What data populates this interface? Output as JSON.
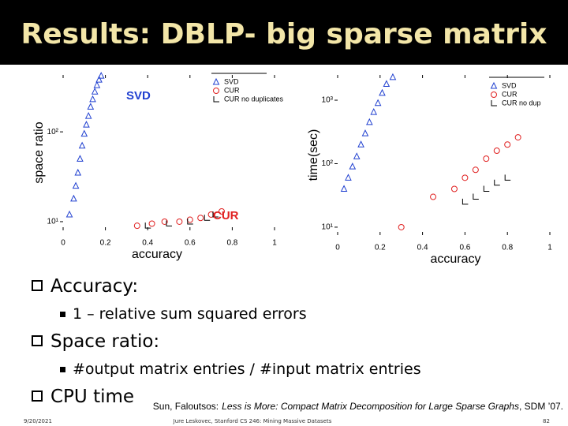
{
  "title": "Results: DBLP- big sparse matrix",
  "chart_data": [
    {
      "type": "scatter",
      "xlabel": "accuracy",
      "ylabel": "space ratio",
      "xlim": [
        0,
        1
      ],
      "xticks": [
        0,
        0.2,
        0.4,
        0.6,
        0.8,
        1
      ],
      "ylim": [
        8,
        430
      ],
      "ylog": true,
      "yticks": [
        {
          "value": 10,
          "label": "10¹"
        },
        {
          "value": 100,
          "label": "10²"
        }
      ],
      "annotations": [
        {
          "text": "SVD",
          "color": "#1f3fd0"
        },
        {
          "text": "CUR",
          "color": "#e02020"
        }
      ],
      "series": [
        {
          "name": "SVD",
          "color": "#2040d0",
          "marker": "triangle",
          "x": [
            0.03,
            0.05,
            0.06,
            0.07,
            0.08,
            0.09,
            0.1,
            0.11,
            0.12,
            0.13,
            0.14,
            0.15,
            0.16,
            0.17,
            0.18
          ],
          "values": [
            12,
            18,
            25,
            35,
            50,
            70,
            95,
            120,
            150,
            190,
            230,
            280,
            330,
            380,
            420
          ]
        },
        {
          "name": "CUR",
          "color": "#e02020",
          "marker": "circle",
          "x": [
            0.35,
            0.42,
            0.48,
            0.55,
            0.6,
            0.65,
            0.7,
            0.75
          ],
          "values": [
            9,
            9.5,
            10,
            10,
            10.5,
            11,
            12,
            13
          ]
        },
        {
          "name": "CUR no duplicates",
          "color": "#000000",
          "marker": "corner",
          "x": [
            0.4,
            0.5,
            0.6,
            0.68,
            0.72
          ],
          "values": [
            9,
            9.5,
            10,
            11,
            12
          ]
        }
      ]
    },
    {
      "type": "scatter",
      "xlabel": "accuracy",
      "ylabel": "time(sec)",
      "xlim": [
        0,
        1
      ],
      "xticks": [
        0,
        0.2,
        0.4,
        0.6,
        0.8,
        1
      ],
      "ylim": [
        7.5,
        2500
      ],
      "ylog": true,
      "yticks": [
        {
          "value": 10,
          "label": "10¹"
        },
        {
          "value": 100,
          "label": "10²"
        },
        {
          "value": 1000,
          "label": "10³"
        }
      ],
      "series": [
        {
          "name": "SVD",
          "color": "#2040d0",
          "marker": "triangle",
          "x": [
            0.03,
            0.05,
            0.07,
            0.09,
            0.11,
            0.13,
            0.15,
            0.17,
            0.19,
            0.21,
            0.23,
            0.26
          ],
          "values": [
            40,
            60,
            90,
            130,
            200,
            300,
            450,
            650,
            900,
            1300,
            1800,
            2300
          ]
        },
        {
          "name": "CUR",
          "color": "#e02020",
          "marker": "circle",
          "x": [
            0.3,
            0.45,
            0.55,
            0.6,
            0.65,
            0.7,
            0.75,
            0.8,
            0.85
          ],
          "values": [
            10,
            30,
            40,
            60,
            80,
            120,
            160,
            200,
            260
          ]
        },
        {
          "name": "CUR no dup",
          "color": "#000000",
          "marker": "corner",
          "x": [
            0.6,
            0.65,
            0.7,
            0.75,
            0.8
          ],
          "values": [
            25,
            30,
            40,
            50,
            60
          ]
        }
      ]
    }
  ],
  "bullets": [
    {
      "text": "Accuracy:",
      "sub": [
        "1 – relative sum squared errors"
      ]
    },
    {
      "text": "Space ratio:",
      "sub": [
        "#output matrix entries / #input matrix entries"
      ]
    },
    {
      "text": "CPU time"
    }
  ],
  "citation": {
    "authors": "Sun, Faloutsos:",
    "title": "Less is More: Compact Matrix Decomposition for Large Sparse Graphs",
    "venue": ", SDM ’07."
  },
  "footer": {
    "date": "9/20/2021",
    "source": "Jure Leskovec, Stanford CS 246: Mining Massive Datasets",
    "page": "82"
  }
}
